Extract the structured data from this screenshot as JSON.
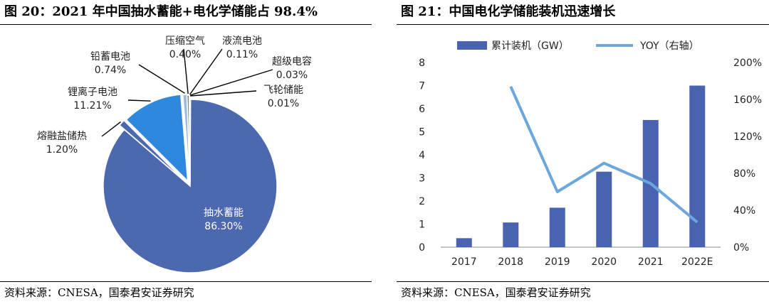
{
  "left": {
    "title": "图 20：2021 年中国抽水蓄能+电化学储能占 98.4%",
    "source": "资料来源：CNESA，国泰君安证券研究"
  },
  "right": {
    "title": "图 21：中国电化学储能装机迅速增长",
    "source": "资料来源：CNESA，国泰君安证券研究"
  },
  "chart_data": [
    {
      "type": "pie",
      "title": "2021 年中国抽水蓄能+电化学储能占 98.4%",
      "slices": [
        {
          "label": "抽水蓄能",
          "pct": "86.30%",
          "value": 86.3,
          "color": "#4C69B0"
        },
        {
          "label": "熔融盐储热",
          "pct": "1.20%",
          "value": 1.2,
          "color": "#4C69B0"
        },
        {
          "label": "锂离子电池",
          "pct": "11.21%",
          "value": 11.21,
          "color": "#2E88DE"
        },
        {
          "label": "铅蓄电池",
          "pct": "0.74%",
          "value": 0.74,
          "color": "#9BB8E0"
        },
        {
          "label": "压缩空气",
          "pct": "0.40%",
          "value": 0.4,
          "color": "#7F7F7F"
        },
        {
          "label": "液流电池",
          "pct": "0.11%",
          "value": 0.11,
          "color": "#4C69B0"
        },
        {
          "label": "超级电容",
          "pct": "0.03%",
          "value": 0.03,
          "color": "#4C69B0"
        },
        {
          "label": "飞轮储能",
          "pct": "0.01%",
          "value": 0.01,
          "color": "#4C69B0"
        }
      ]
    },
    {
      "type": "bar+line",
      "title": "中国电化学储能装机迅速增长",
      "categories": [
        "2017",
        "2018",
        "2019",
        "2020",
        "2021",
        "2022E"
      ],
      "series": [
        {
          "name": "累计装机（GW）",
          "type": "bar",
          "axis": "left",
          "values": [
            0.39,
            1.07,
            1.71,
            3.27,
            5.51,
            7.0
          ],
          "color": "#4A63B0"
        },
        {
          "name": "YOY（右轴）",
          "type": "line",
          "axis": "right",
          "values": [
            null,
            1.74,
            0.6,
            0.91,
            0.69,
            0.27
          ],
          "color": "#6CA7DC"
        }
      ],
      "ylim_left": [
        0,
        8
      ],
      "yticks_left": [
        "0",
        "1",
        "2",
        "3",
        "4",
        "5",
        "6",
        "7",
        "8"
      ],
      "ylim_right": [
        0,
        2.0
      ],
      "yticks_right": [
        "0%",
        "40%",
        "80%",
        "120%",
        "160%",
        "200%"
      ]
    }
  ]
}
